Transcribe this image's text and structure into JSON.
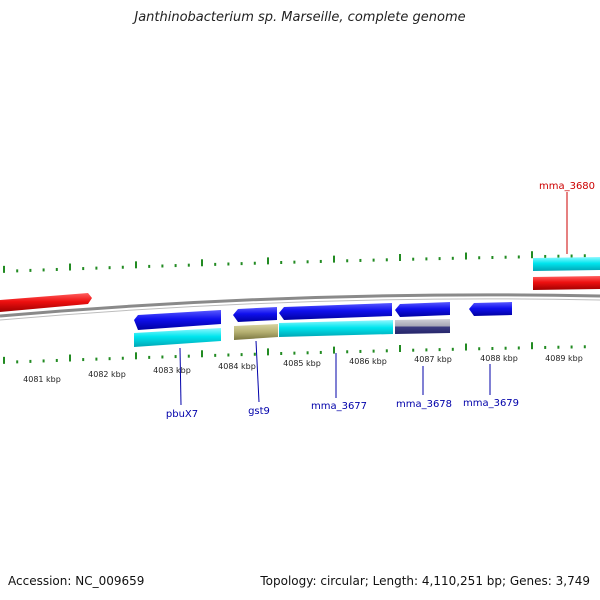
{
  "title": "Janthinobacterium sp. Marseille, complete genome",
  "footer": {
    "accession": "Accession: NC_009659",
    "summary": "Topology: circular; Length: 4,110,251 bp; Genes: 3,749"
  },
  "ticks": [
    "4081 kbp",
    "4082 kbp",
    "4083 kbp",
    "4084 kbp",
    "4085 kbp",
    "4086 kbp",
    "4087 kbp",
    "4088 kbp",
    "4089 kbp"
  ],
  "gene_labels": {
    "mma_3680": "mma_3680",
    "pbuX7": "pbuX7",
    "gst9": "gst9",
    "mma_3677": "mma_3677",
    "mma_3678": "mma_3678",
    "mma_3679": "mma_3679"
  },
  "colors": {
    "forward_strand": "#e01010",
    "forward_cds": "#00e5ee",
    "reverse_strand": "#1010dd",
    "backbone": "#888888",
    "gc_ticks": "#228b22",
    "label_blue": "#0000aa",
    "label_red": "#cc0000"
  }
}
